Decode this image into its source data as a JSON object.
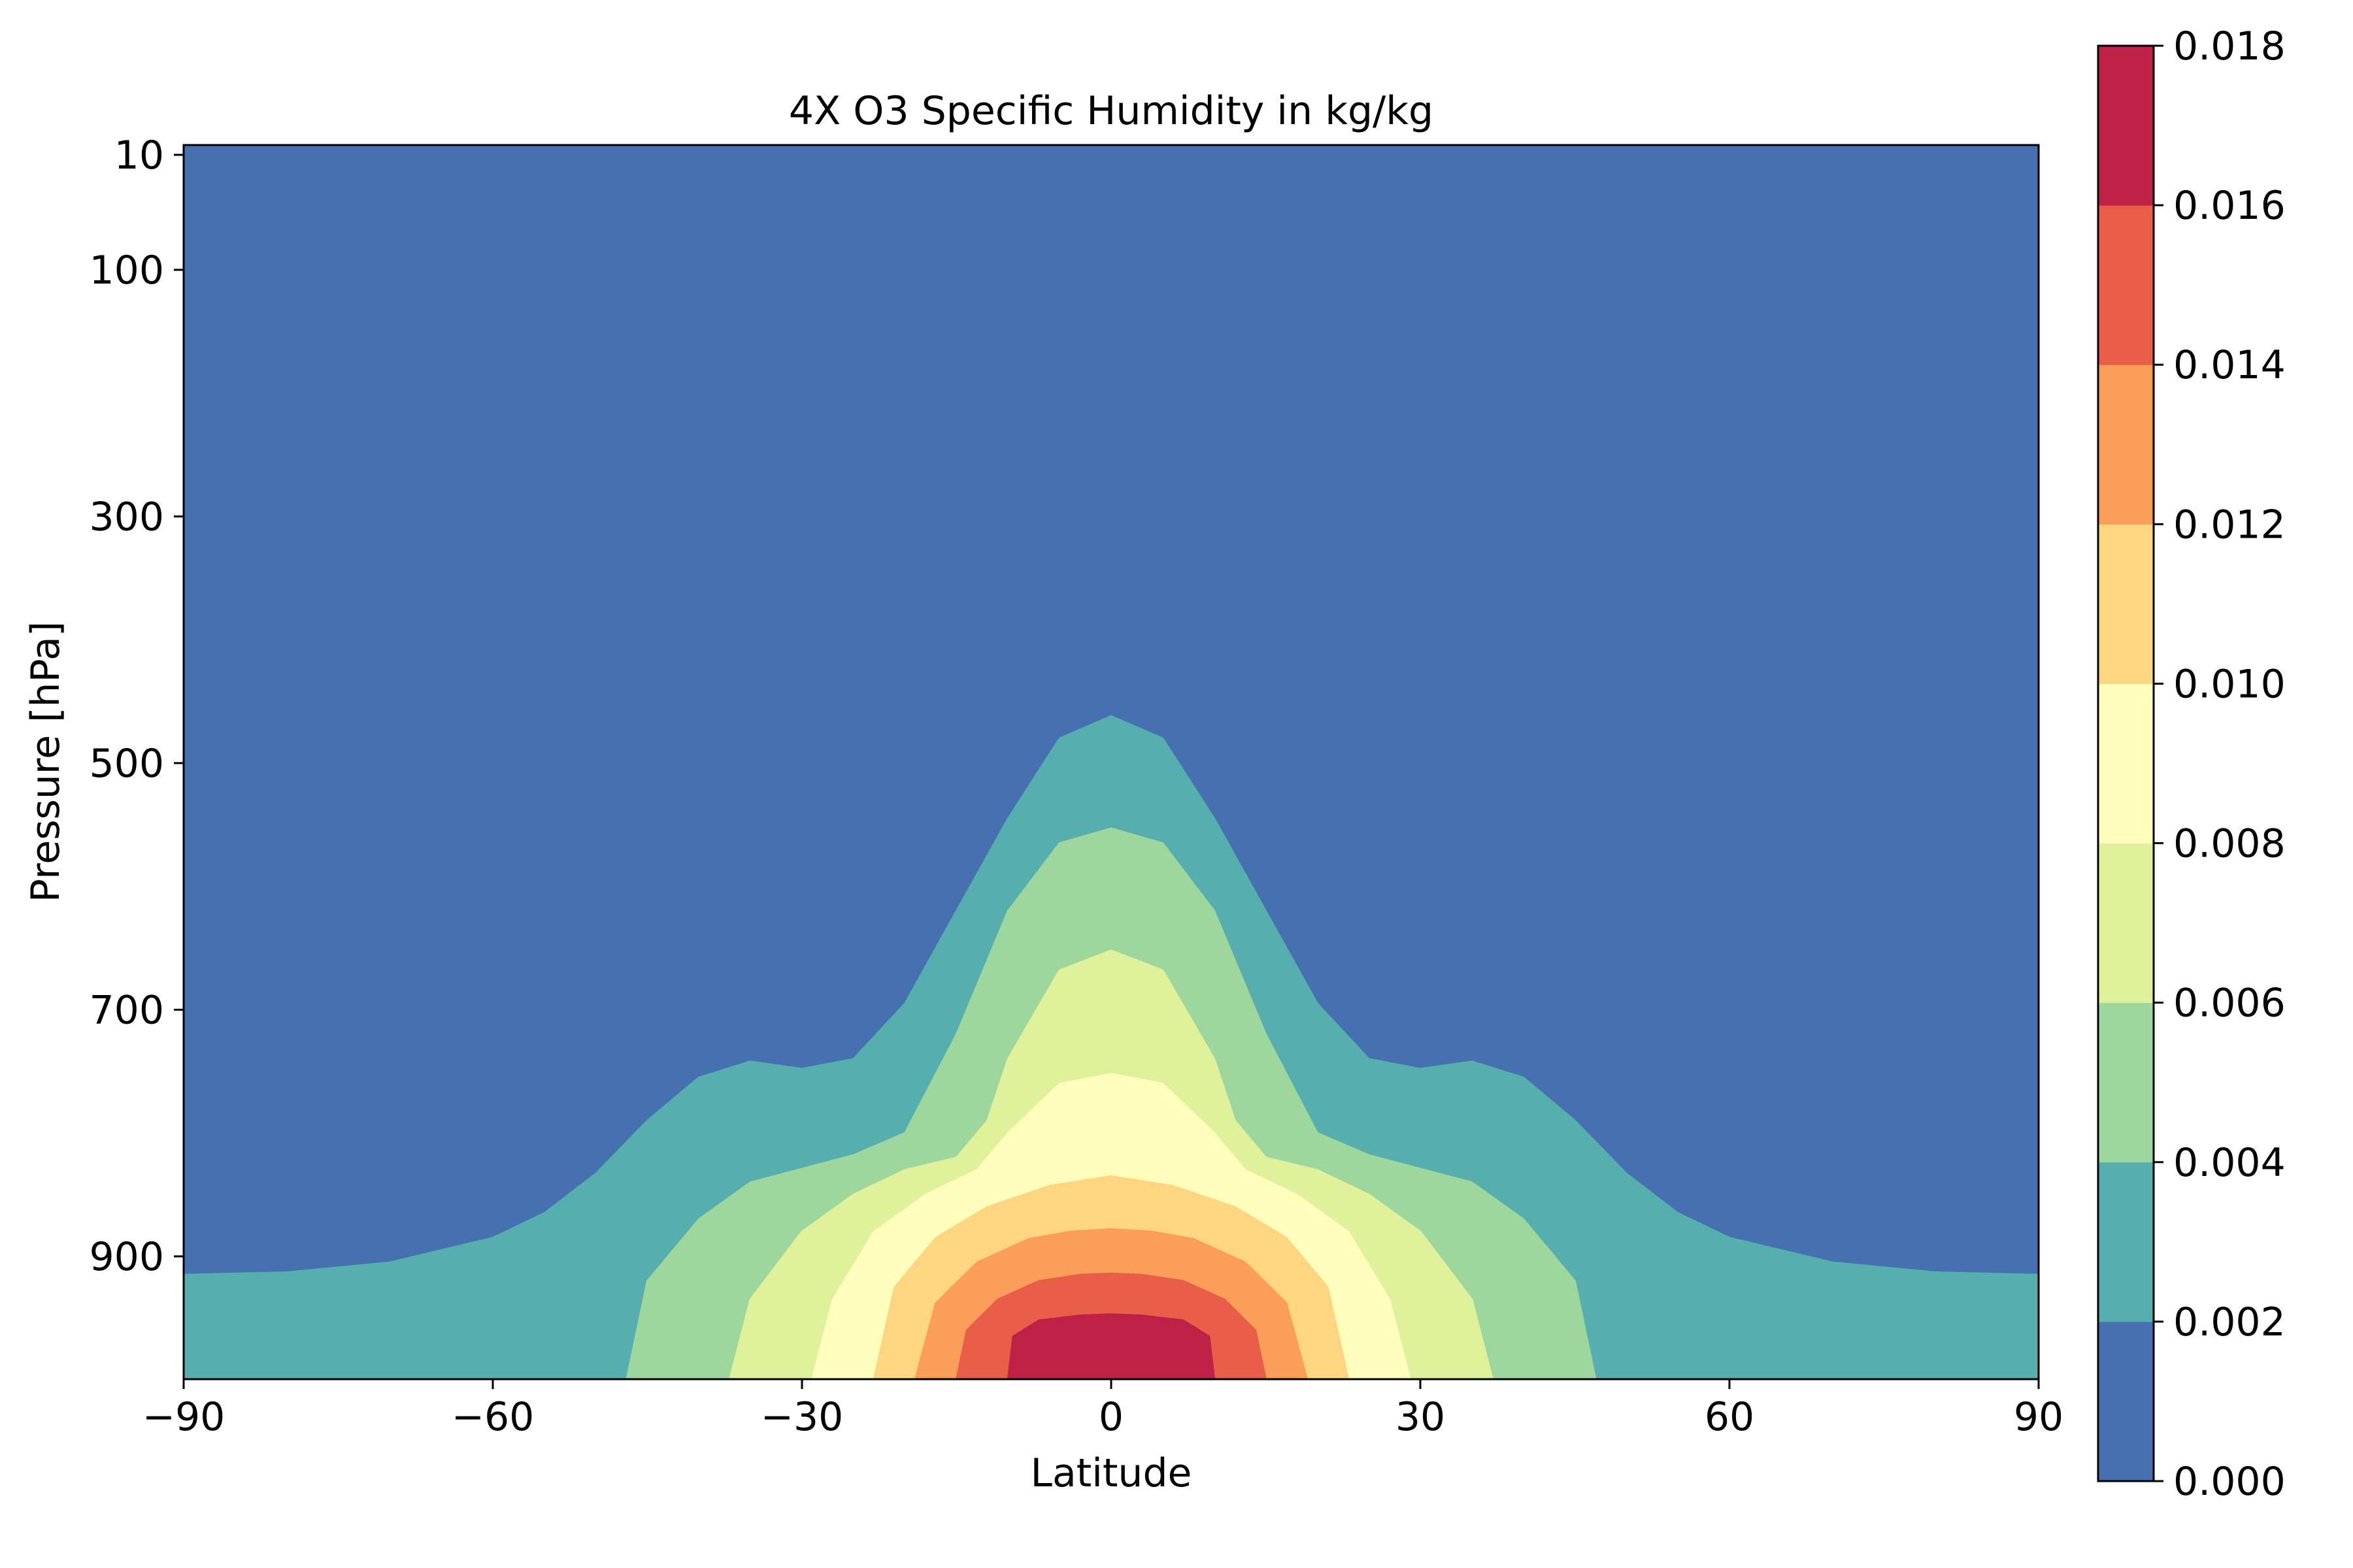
{
  "chart_data": {
    "type": "contourf",
    "title": "4X O3 Specific Humidity in kg/kg",
    "xlabel": "Latitude",
    "ylabel": "Pressure [hPa]",
    "xlim": [
      -90,
      90
    ],
    "ylim": [
      1000,
      10
    ],
    "xticks": [
      -90,
      -60,
      -30,
      0,
      30,
      60,
      90
    ],
    "xtick_labels": [
      "−90",
      "−60",
      "−30",
      "0",
      "30",
      "60",
      "90"
    ],
    "yticks": [
      10,
      100,
      300,
      500,
      700,
      900
    ],
    "ytick_labels": [
      "10",
      "100",
      "300",
      "500",
      "700",
      "900"
    ],
    "colorbar": {
      "levels": [
        0.0,
        0.002,
        0.004,
        0.006,
        0.008,
        0.01,
        0.012,
        0.014,
        0.016,
        0.018
      ],
      "tick_labels": [
        "0.000",
        "0.002",
        "0.004",
        "0.006",
        "0.008",
        "0.010",
        "0.012",
        "0.014",
        "0.016",
        "0.018"
      ],
      "colors": [
        "#4770b1",
        "#56aeae",
        "#9ed79e",
        "#dff19a",
        "#fefdbc",
        "#fed682",
        "#fa9e5a",
        "#e95e48",
        "#be2046"
      ]
    },
    "contours": [
      {
        "level": 0.002,
        "top": [
          [
            -90,
            915
          ],
          [
            -80,
            913
          ],
          [
            -70,
            905
          ],
          [
            -60,
            885
          ],
          [
            -55,
            865
          ],
          [
            -50,
            833
          ],
          [
            -45,
            790
          ],
          [
            -40,
            755
          ],
          [
            -35,
            742
          ],
          [
            -30,
            748
          ],
          [
            -25,
            740
          ],
          [
            -20,
            695
          ],
          [
            -15,
            620
          ],
          [
            -10,
            545
          ],
          [
            -5,
            480
          ],
          [
            0,
            462
          ],
          [
            5,
            480
          ],
          [
            10,
            545
          ],
          [
            15,
            620
          ],
          [
            20,
            695
          ],
          [
            25,
            740
          ],
          [
            30,
            748
          ],
          [
            35,
            742
          ],
          [
            40,
            755
          ],
          [
            45,
            790
          ],
          [
            50,
            833
          ],
          [
            55,
            865
          ],
          [
            60,
            885
          ],
          [
            70,
            905
          ],
          [
            80,
            913
          ],
          [
            90,
            915
          ]
        ]
      },
      {
        "level": 0.004,
        "top": [
          [
            -47,
            1000
          ],
          [
            -45,
            920
          ],
          [
            -40,
            870
          ],
          [
            -35,
            840
          ],
          [
            -25,
            818
          ],
          [
            -20,
            800
          ],
          [
            -15,
            720
          ],
          [
            -10,
            620
          ],
          [
            -5,
            565
          ],
          [
            0,
            553
          ],
          [
            5,
            565
          ],
          [
            10,
            620
          ],
          [
            15,
            720
          ],
          [
            20,
            800
          ],
          [
            25,
            818
          ],
          [
            35,
            840
          ],
          [
            40,
            870
          ],
          [
            45,
            920
          ],
          [
            47,
            1000
          ]
        ]
      },
      {
        "level": 0.006,
        "top": [
          [
            -37,
            1000
          ],
          [
            -35,
            935
          ],
          [
            -30,
            880
          ],
          [
            -25,
            850
          ],
          [
            -20,
            830
          ],
          [
            -15,
            820
          ],
          [
            -12,
            790
          ],
          [
            -10,
            740
          ],
          [
            -5,
            668
          ],
          [
            0,
            652
          ],
          [
            5,
            668
          ],
          [
            10,
            740
          ],
          [
            12,
            790
          ],
          [
            15,
            820
          ],
          [
            20,
            830
          ],
          [
            25,
            850
          ],
          [
            30,
            880
          ],
          [
            35,
            935
          ],
          [
            37,
            1000
          ]
        ]
      },
      {
        "level": 0.008,
        "top": [
          [
            -29,
            1000
          ],
          [
            -27,
            935
          ],
          [
            -23,
            880
          ],
          [
            -18,
            850
          ],
          [
            -13,
            830
          ],
          [
            -10,
            800
          ],
          [
            -5,
            760
          ],
          [
            0,
            752
          ],
          [
            5,
            760
          ],
          [
            10,
            800
          ],
          [
            13,
            830
          ],
          [
            18,
            850
          ],
          [
            23,
            880
          ],
          [
            27,
            935
          ],
          [
            29,
            1000
          ]
        ]
      },
      {
        "level": 0.01,
        "top": [
          [
            -23,
            1000
          ],
          [
            -21,
            925
          ],
          [
            -17,
            885
          ],
          [
            -12,
            860
          ],
          [
            -6,
            843
          ],
          [
            0,
            835
          ],
          [
            6,
            843
          ],
          [
            12,
            860
          ],
          [
            17,
            885
          ],
          [
            21,
            925
          ],
          [
            23,
            1000
          ]
        ]
      },
      {
        "level": 0.012,
        "top": [
          [
            -19,
            1000
          ],
          [
            -17,
            938
          ],
          [
            -13,
            905
          ],
          [
            -8,
            886
          ],
          [
            -4,
            880
          ],
          [
            0,
            878
          ],
          [
            4,
            880
          ],
          [
            8,
            886
          ],
          [
            13,
            905
          ],
          [
            17,
            938
          ],
          [
            19,
            1000
          ]
        ]
      },
      {
        "level": 0.014,
        "top": [
          [
            -15,
            1000
          ],
          [
            -14,
            960
          ],
          [
            -11,
            935
          ],
          [
            -7,
            920
          ],
          [
            -3,
            915
          ],
          [
            0,
            914
          ],
          [
            3,
            915
          ],
          [
            7,
            920
          ],
          [
            11,
            935
          ],
          [
            14,
            960
          ],
          [
            15,
            1000
          ]
        ]
      },
      {
        "level": 0.016,
        "top": [
          [
            -10,
            1000
          ],
          [
            -9.5,
            965
          ],
          [
            -7,
            952
          ],
          [
            -3,
            948
          ],
          [
            0,
            947
          ],
          [
            3,
            948
          ],
          [
            7,
            952
          ],
          [
            9.5,
            965
          ],
          [
            10,
            1000
          ]
        ]
      }
    ]
  }
}
